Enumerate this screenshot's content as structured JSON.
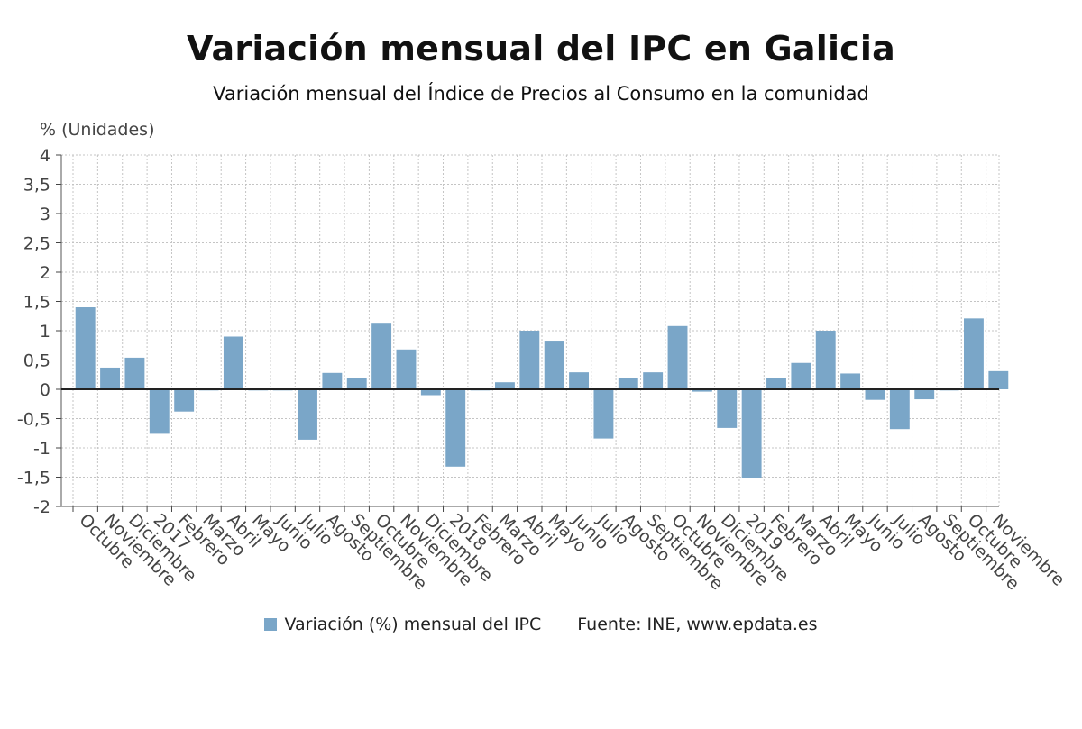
{
  "chart_data": {
    "type": "bar",
    "title": "Variación mensual del IPC en Galicia",
    "subtitle": "Variación mensual del Índice de Precios al Consumo en la comunidad",
    "ylabel": "% (Unidades)",
    "ylim": [
      -2,
      4
    ],
    "yticks": [
      {
        "value": 4,
        "label": "4"
      },
      {
        "value": 3.5,
        "label": "3,5"
      },
      {
        "value": 3,
        "label": "3"
      },
      {
        "value": 2.5,
        "label": "2,5"
      },
      {
        "value": 2,
        "label": "2"
      },
      {
        "value": 1.5,
        "label": "1,5"
      },
      {
        "value": 1,
        "label": "1"
      },
      {
        "value": 0.5,
        "label": "0,5"
      },
      {
        "value": 0,
        "label": "0"
      },
      {
        "value": -0.5,
        "label": "-0,5"
      },
      {
        "value": -1,
        "label": "-1"
      },
      {
        "value": -1.5,
        "label": "-1,5"
      },
      {
        "value": -2,
        "label": "-2"
      }
    ],
    "grid": true,
    "legend_position": "bottom",
    "bar_color": "#7aa6c8",
    "categories": [
      "Octubre",
      "Noviembre",
      "Diciembre",
      "2017",
      "Febrero",
      "Marzo",
      "Abril",
      "Mayo",
      "Junio",
      "Julio",
      "Agosto",
      "Septiembre",
      "Octubre",
      "Noviembre",
      "Diciembre",
      "2018",
      "Febrero",
      "Marzo",
      "Abril",
      "Mayo",
      "Junio",
      "Julio",
      "Agosto",
      "Septiembre",
      "Octubre",
      "Noviembre",
      "Diciembre",
      "2019",
      "Febrero",
      "Marzo",
      "Abril",
      "Mayo",
      "Junio",
      "Julio",
      "Agosto",
      "Septiembre",
      "Octubre",
      "Noviembre"
    ],
    "series": [
      {
        "name": "Variación (%) mensual del IPC",
        "values": [
          1.4,
          0.37,
          0.54,
          -0.76,
          -0.38,
          -0.02,
          0.9,
          -0.02,
          -0.02,
          -0.86,
          0.28,
          0.2,
          1.12,
          0.68,
          -0.1,
          -1.32,
          -0.02,
          0.12,
          1.0,
          0.83,
          0.29,
          -0.84,
          0.2,
          0.29,
          1.08,
          -0.04,
          -0.66,
          -1.52,
          0.19,
          0.45,
          1.0,
          0.27,
          -0.18,
          -0.68,
          -0.17,
          -0.02,
          1.21,
          0.31
        ]
      }
    ],
    "source": "Fuente: INE, www.epdata.es"
  }
}
